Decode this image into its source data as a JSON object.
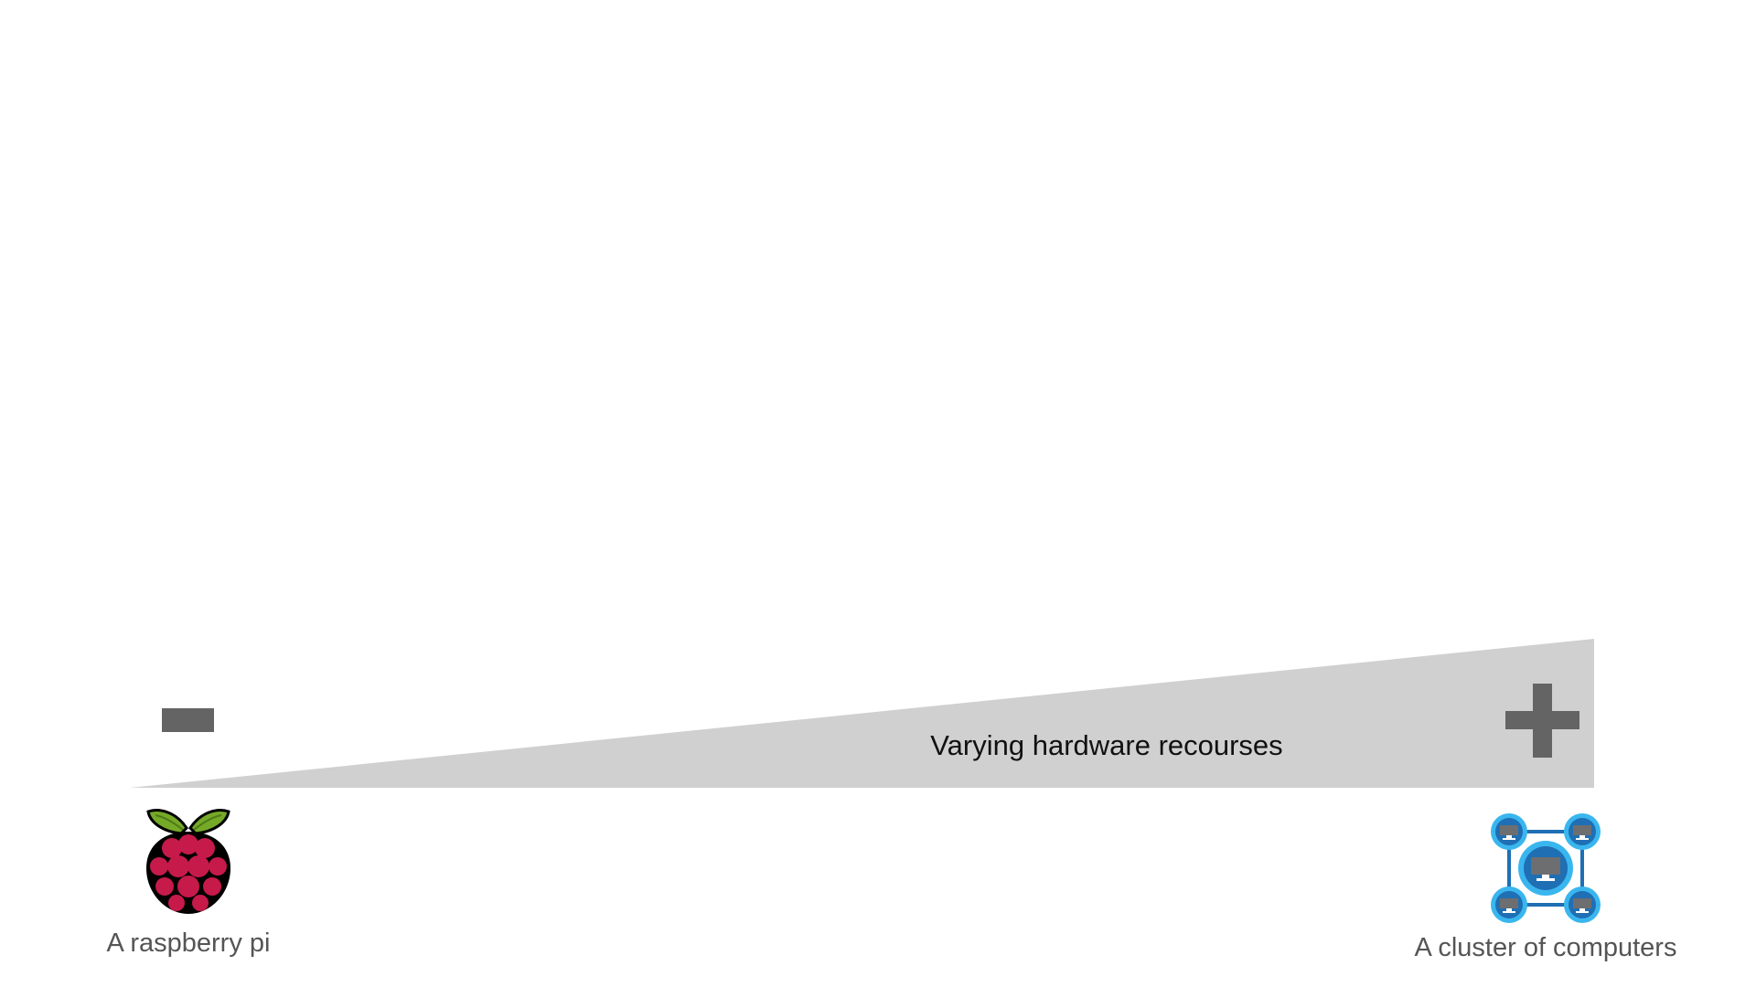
{
  "slide": {
    "wedge_label": "Varying hardware recourses",
    "low_end": {
      "symbol": "minus-sign",
      "icon": "raspberry-pi-icon",
      "caption": "A raspberry pi"
    },
    "high_end": {
      "symbol": "plus-sign",
      "icon": "computer-cluster-icon",
      "caption": "A cluster of computers"
    }
  },
  "colors": {
    "background": "#ffffff",
    "wedge": "#d0d0d0",
    "sign": "#646464",
    "label_text": "#111111",
    "caption_text": "#555555",
    "raspberry_berry": "#c51a4a",
    "raspberry_leaf": "#75a928",
    "cluster_ring": "#3ab6ef",
    "cluster_node": "#1f6fb4",
    "cluster_screen": "#6d6e70"
  }
}
